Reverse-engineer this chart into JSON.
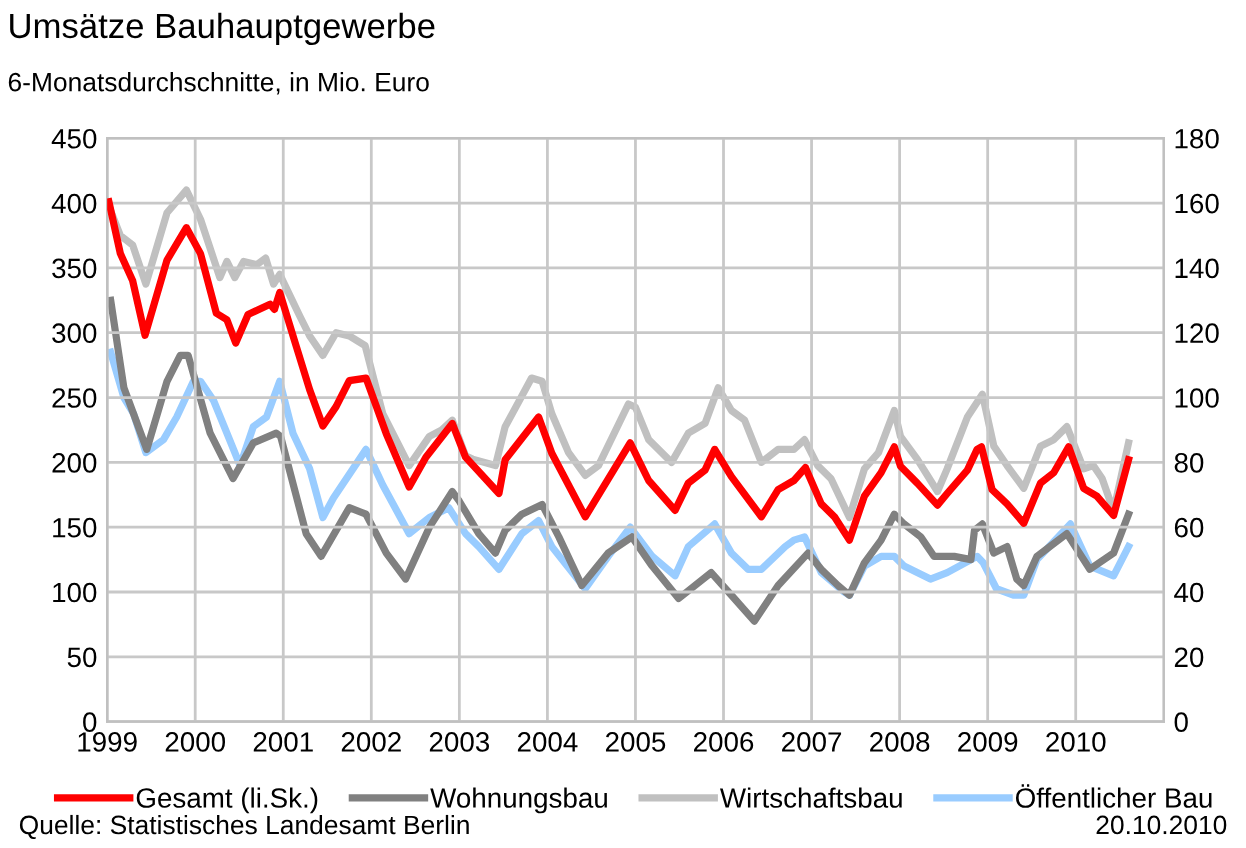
{
  "chart_data": {
    "type": "line",
    "title": "Umsätze Bauhauptgewerbe",
    "subtitle": "6-Monatsdurchschnitte, in Mio. Euro",
    "annotations": [
      "Quelle: Statistisches Landesamt Berlin",
      "20.10.2010"
    ],
    "xlim": [
      1999,
      2011
    ],
    "xticks": [
      1999,
      2000,
      2001,
      2002,
      2003,
      2004,
      2005,
      2006,
      2007,
      2008,
      2009,
      2010
    ],
    "ylim": [
      0,
      450
    ],
    "yticks": [
      0,
      50,
      100,
      150,
      200,
      250,
      300,
      350,
      400,
      450
    ],
    "y2lim": [
      0,
      180
    ],
    "y2ticks": [
      0,
      20,
      40,
      60,
      80,
      100,
      120,
      140,
      160,
      180
    ],
    "grid": true,
    "legend": "bottom",
    "line_style": "solid",
    "marker": "none",
    "series": [
      {
        "name": "Gesamt (li.Sk.)",
        "color": "#ff0000",
        "x": [
          1999.02,
          1999.15,
          1999.29,
          1999.43,
          1999.68,
          1999.9,
          2000.06,
          2000.24,
          2000.36,
          2000.46,
          2000.6,
          2000.85,
          2000.9,
          2000.96,
          2001.15,
          2001.3,
          2001.45,
          2001.6,
          2001.75,
          2001.94,
          2002.17,
          2002.43,
          2002.62,
          2002.92,
          2003.07,
          2003.45,
          2003.52,
          2003.9,
          2004.05,
          2004.43,
          2004.94,
          2005.15,
          2005.45,
          2005.6,
          2005.79,
          2005.9,
          2006.09,
          2006.43,
          2006.62,
          2006.8,
          2006.93,
          2007.11,
          2007.26,
          2007.43,
          2007.6,
          2007.79,
          2007.94,
          2008.01,
          2008.2,
          2008.43,
          2008.54,
          2008.77,
          2008.88,
          2008.93,
          2009.05,
          2009.22,
          2009.41,
          2009.6,
          2009.75,
          2009.92,
          2010.09,
          2010.24,
          2010.43,
          2010.6
        ],
        "values": [
          401,
          361,
          340,
          298,
          356,
          381,
          361,
          315,
          310,
          292,
          314,
          322,
          318,
          331,
          289,
          256,
          228,
          243,
          263,
          265,
          222,
          181,
          204,
          230,
          204,
          176,
          202,
          235,
          207,
          158,
          215,
          186,
          163,
          184,
          194,
          210,
          189,
          158,
          179,
          186,
          196,
          168,
          158,
          140,
          174,
          192,
          212,
          197,
          184,
          167,
          176,
          194,
          210,
          212,
          179,
          168,
          153,
          184,
          192,
          212,
          180,
          174,
          159,
          202
        ]
      },
      {
        "name": "Wohnungsbau",
        "color": "#808080",
        "axis": "y2",
        "x": [
          1999.04,
          1999.19,
          1999.45,
          1999.68,
          1999.83,
          1999.92,
          2000.17,
          2000.43,
          2000.66,
          2000.92,
          2000.97,
          2001.26,
          2001.43,
          2001.75,
          2001.94,
          2002.17,
          2002.39,
          2002.66,
          2002.92,
          2003.0,
          2003.22,
          2003.41,
          2003.52,
          2003.71,
          2003.94,
          2004.13,
          2004.39,
          2004.69,
          2004.96,
          2005.19,
          2005.49,
          2005.86,
          2006.09,
          2006.35,
          2006.62,
          2006.96,
          2007.11,
          2007.3,
          2007.43,
          2007.6,
          2007.79,
          2007.94,
          2008.05,
          2008.24,
          2008.39,
          2008.62,
          2008.81,
          2008.85,
          2008.94,
          2009.07,
          2009.22,
          2009.33,
          2009.41,
          2009.56,
          2009.9,
          2010.16,
          2010.43,
          2010.6
        ],
        "values": [
          130,
          103,
          84,
          105,
          113,
          113,
          89,
          75,
          86,
          89,
          88,
          58,
          51,
          66,
          64,
          52,
          44,
          60,
          71,
          68,
          58,
          52,
          59,
          64,
          67,
          57,
          42,
          52,
          57,
          48,
          38,
          46,
          39,
          31,
          42,
          52,
          47,
          42,
          39,
          49,
          56,
          64,
          61,
          57,
          51,
          51,
          50,
          59,
          61,
          52,
          54,
          44,
          42,
          51,
          58,
          47,
          52,
          64
        ]
      },
      {
        "name": "Wirtschaftsbau",
        "color": "#c0c0c0",
        "axis": "y2",
        "x": [
          1999.02,
          1999.15,
          1999.29,
          1999.44,
          1999.68,
          1999.9,
          2000.06,
          2000.28,
          2000.36,
          2000.45,
          2000.55,
          2000.7,
          2000.8,
          2000.89,
          2000.96,
          2001.19,
          2001.3,
          2001.45,
          2001.6,
          2001.75,
          2001.93,
          2002.13,
          2002.43,
          2002.66,
          2002.8,
          2002.92,
          2003.07,
          2003.15,
          2003.41,
          2003.52,
          2003.82,
          2003.94,
          2004.05,
          2004.24,
          2004.43,
          2004.58,
          2004.92,
          2005.0,
          2005.15,
          2005.41,
          2005.6,
          2005.79,
          2005.94,
          2006.09,
          2006.24,
          2006.43,
          2006.62,
          2006.8,
          2006.92,
          2007.07,
          2007.22,
          2007.43,
          2007.6,
          2007.76,
          2007.94,
          2008.01,
          2008.2,
          2008.43,
          2008.54,
          2008.77,
          2008.94,
          2009.07,
          2009.22,
          2009.41,
          2009.6,
          2009.75,
          2009.9,
          2010.09,
          2010.2,
          2010.3,
          2010.43,
          2010.6
        ],
        "values": [
          159,
          150,
          147,
          135,
          157,
          164,
          155,
          137,
          142,
          137,
          142,
          141,
          143,
          135,
          138,
          125,
          119,
          113,
          120,
          119,
          116,
          95,
          79,
          88,
          90,
          93,
          82,
          81,
          79,
          91,
          106,
          105,
          95,
          83,
          76,
          79,
          98,
          97,
          87,
          80,
          89,
          92,
          103,
          96,
          93,
          80,
          84,
          84,
          87,
          79,
          75,
          63,
          78,
          83,
          96,
          88,
          81,
          71,
          78,
          94,
          101,
          85,
          79,
          72,
          85,
          87,
          91,
          78,
          79,
          75,
          65,
          86
        ]
      },
      {
        "name": "Öffentlicher Bau",
        "color": "#99ccff",
        "axis": "y2",
        "x": [
          1999.04,
          1999.19,
          1999.3,
          1999.44,
          1999.64,
          1999.79,
          1999.98,
          2000.06,
          2000.21,
          2000.36,
          2000.51,
          2000.66,
          2000.81,
          2000.96,
          2001.11,
          2001.3,
          2001.45,
          2001.57,
          2001.94,
          2002.13,
          2002.43,
          2002.66,
          2002.88,
          2003.07,
          2003.22,
          2003.45,
          2003.71,
          2003.9,
          2004.05,
          2004.43,
          2004.69,
          2004.94,
          2005.19,
          2005.45,
          2005.6,
          2005.9,
          2006.09,
          2006.28,
          2006.43,
          2006.7,
          2006.8,
          2006.92,
          2007.11,
          2007.37,
          2007.43,
          2007.6,
          2007.79,
          2007.94,
          2008.05,
          2008.35,
          2008.54,
          2008.88,
          2008.95,
          2009.1,
          2009.3,
          2009.41,
          2009.56,
          2009.94,
          2010.16,
          2010.43,
          2010.6
        ],
        "values": [
          114,
          100,
          95,
          83,
          87,
          94,
          105,
          105,
          99,
          89,
          79,
          91,
          94,
          105,
          89,
          78,
          63,
          69,
          84,
          73,
          58,
          63,
          66,
          58,
          54,
          47,
          58,
          62,
          54,
          41,
          51,
          60,
          51,
          45,
          54,
          61,
          52,
          47,
          47,
          54,
          56,
          57,
          46,
          40,
          39,
          48,
          51,
          51,
          48,
          44,
          46,
          51,
          49,
          41,
          39,
          39,
          50,
          61,
          48,
          45,
          54
        ]
      }
    ]
  }
}
